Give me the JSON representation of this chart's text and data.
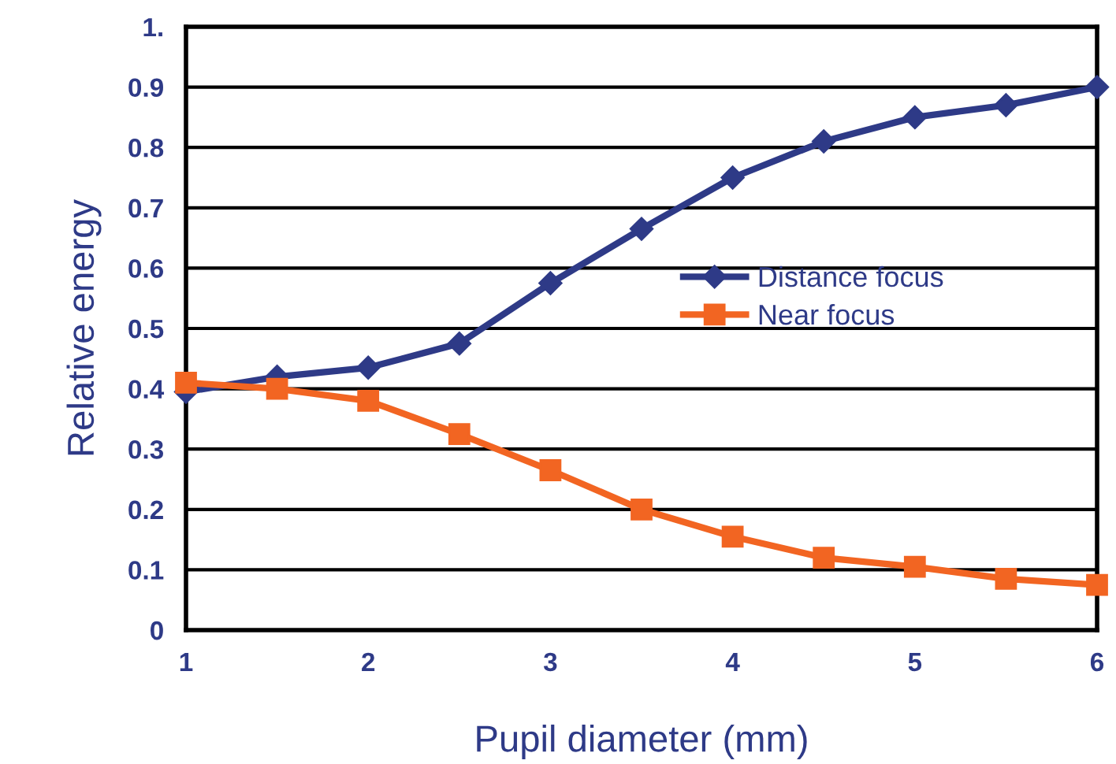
{
  "chart_data": {
    "type": "line",
    "xlabel": "Pupil diameter (mm)",
    "ylabel": "Relative energy",
    "x": [
      1,
      1.5,
      2,
      2.5,
      3,
      3.5,
      4,
      4.5,
      5,
      5.5,
      6
    ],
    "series": [
      {
        "name": "Distance focus",
        "color": "#2e3a87",
        "marker": "diamond",
        "values": [
          0.395,
          0.42,
          0.435,
          0.475,
          0.575,
          0.665,
          0.75,
          0.81,
          0.85,
          0.87,
          0.9
        ]
      },
      {
        "name": "Near focus",
        "color": "#f26522",
        "marker": "square",
        "values": [
          0.41,
          0.4,
          0.38,
          0.325,
          0.265,
          0.2,
          0.155,
          0.12,
          0.105,
          0.085,
          0.075
        ]
      }
    ],
    "xlim": [
      1,
      6
    ],
    "xticks": [
      1,
      2,
      3,
      4,
      5,
      6
    ],
    "ylim": [
      0,
      1
    ],
    "yticks": [
      0,
      0.1,
      0.2,
      0.3,
      0.4,
      0.5,
      0.6,
      0.7,
      0.8,
      0.9,
      {
        "value": 1,
        "label": "1."
      }
    ],
    "grid": "y",
    "legend": "right",
    "line_style": "solid"
  }
}
